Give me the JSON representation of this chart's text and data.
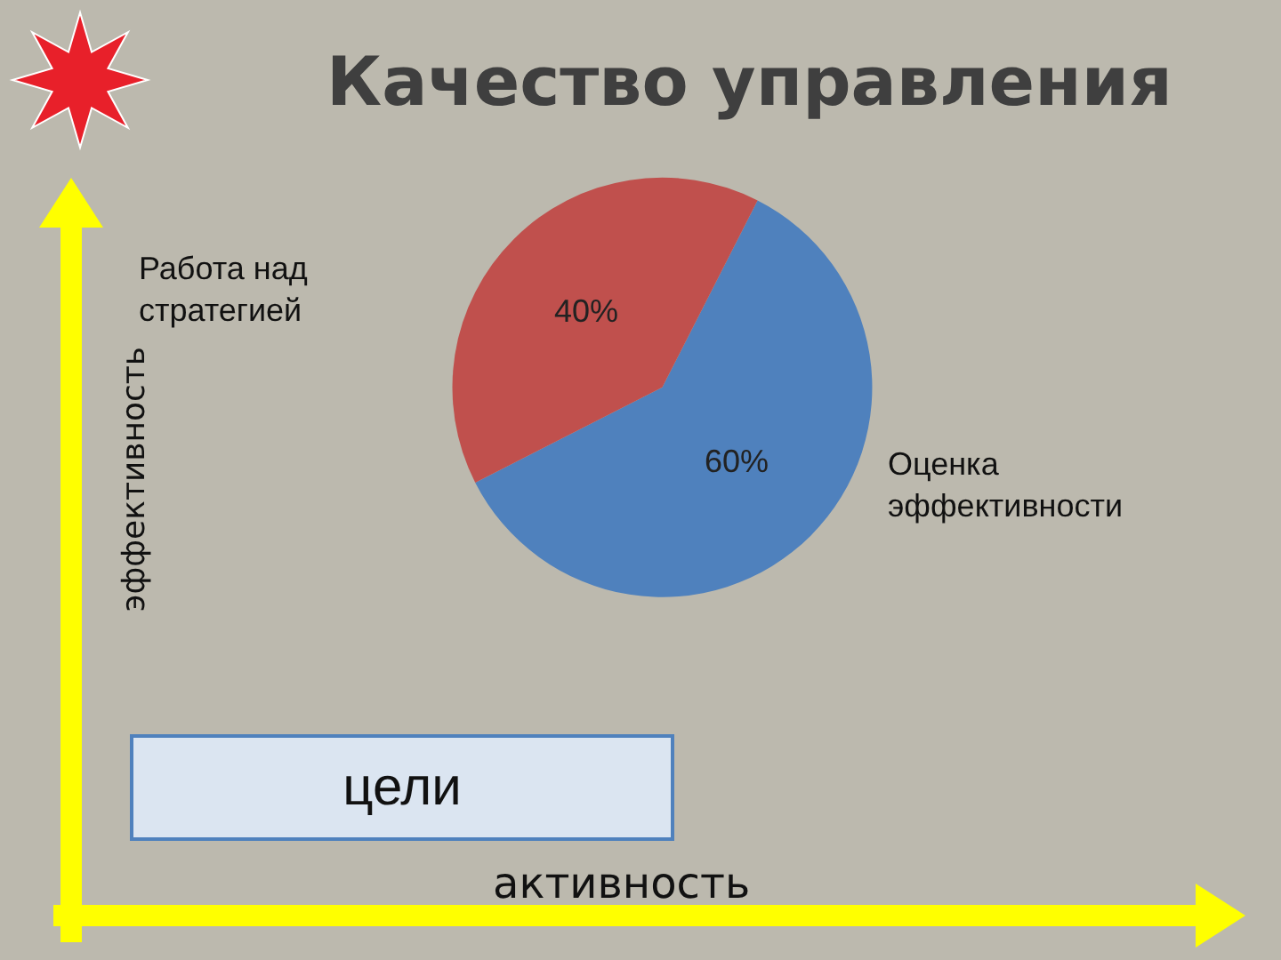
{
  "chart_data": {
    "type": "pie",
    "title": "Качество управления",
    "categories": [
      "Оценка эффективности",
      "Работа над стратегией"
    ],
    "values": [
      60,
      40
    ],
    "colors": [
      "#4f81bd",
      "#c0504d"
    ],
    "value_labels": [
      "60%",
      "40%"
    ],
    "xlabel": "активность",
    "ylabel": "эффективность",
    "annotations": [
      "цели"
    ],
    "legend": false
  }
}
